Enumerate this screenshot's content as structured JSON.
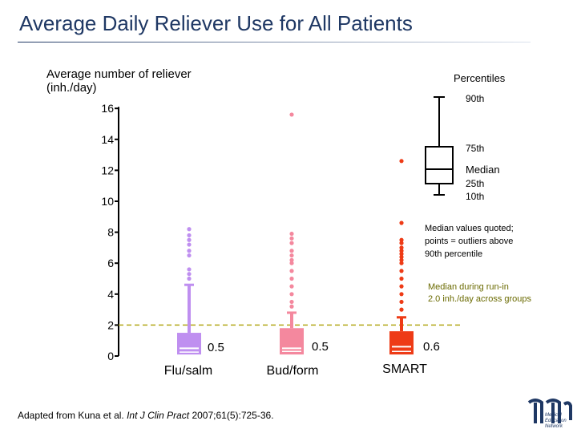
{
  "title": "Average Daily Reliever Use for All Patients",
  "chart_data": {
    "type": "box",
    "ylabel_lines": [
      "Average number of reliever",
      "(inh./day)"
    ],
    "yticks": [
      0,
      2,
      4,
      6,
      8,
      10,
      12,
      14,
      16
    ],
    "ylim": [
      0,
      16
    ],
    "categories": [
      "Flu/salm",
      "Bud/form",
      "SMART"
    ],
    "colors": [
      "#bf8ff0",
      "#f4889e",
      "#ee3b16"
    ],
    "box_stats": [
      {
        "p10": 0.1,
        "p25": 0.25,
        "median": 0.5,
        "p75": 1.5,
        "p90": 4.6
      },
      {
        "p10": 0.1,
        "p25": 0.3,
        "median": 0.5,
        "p75": 1.8,
        "p90": 2.8
      },
      {
        "p10": 0.1,
        "p25": 0.3,
        "median": 0.6,
        "p75": 1.6,
        "p90": 2.5
      }
    ],
    "outliers": [
      [
        5.0,
        5.3,
        5.6,
        6.5,
        6.8,
        7.2,
        7.5,
        7.8,
        8.2
      ],
      [
        3.2,
        3.5,
        4.0,
        4.5,
        5.0,
        5.5,
        6.0,
        6.2,
        6.5,
        6.8,
        7.3,
        7.6,
        7.9,
        15.6
      ],
      [
        3.0,
        3.5,
        4.0,
        4.5,
        5.0,
        5.5,
        6.0,
        6.2,
        6.4,
        6.6,
        6.8,
        7.0,
        7.3,
        7.5,
        8.6,
        12.6
      ]
    ],
    "median_labels": [
      "0.5",
      "0.5",
      "0.6"
    ],
    "reference_line": {
      "value": 2.0,
      "label_lines": [
        "Median during run-in",
        "2.0 inh./day across groups"
      ]
    },
    "legend": {
      "title": "Percentiles",
      "labels": [
        "90th",
        "75th",
        "Median",
        "25th",
        "10th"
      ]
    },
    "note_lines": [
      "Median values quoted;",
      "points = outliers above",
      "90th percentile"
    ]
  },
  "source": {
    "prefix": "Adapted from Kuna et al. ",
    "journal": "Int J Clin Pract",
    "suffix": " 2007;61(5):725-36."
  },
  "logo_text": [
    "Medical",
    "Education",
    "Network"
  ]
}
